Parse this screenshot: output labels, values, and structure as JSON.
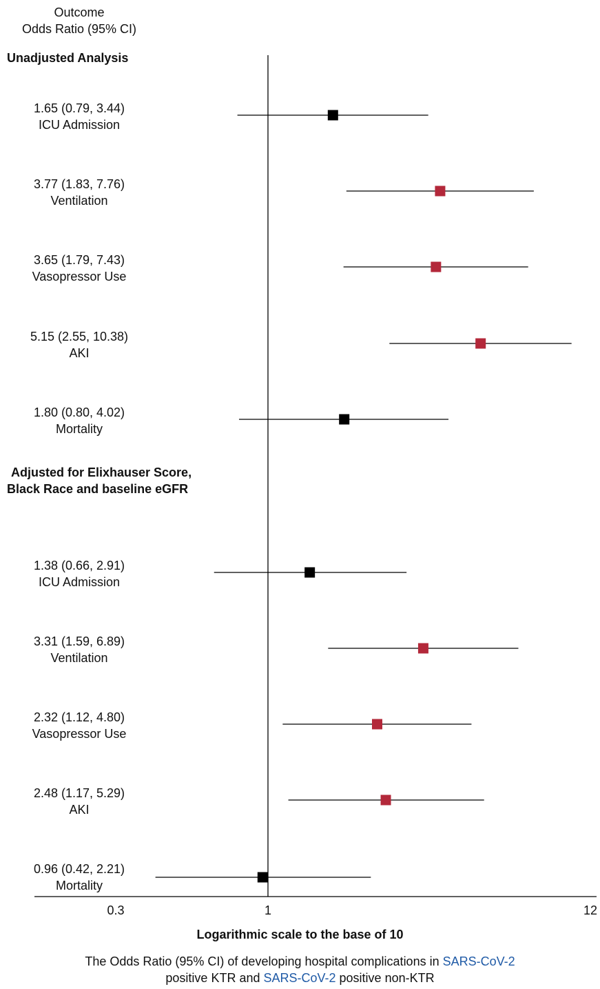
{
  "header": {
    "line1": "Outcome",
    "line2": "Odds Ratio (95% CI)"
  },
  "chart_data": {
    "type": "forest",
    "xscale": "log10",
    "xlim": [
      0.3,
      12
    ],
    "xticks": [
      {
        "value": 0.3,
        "label": "0.3"
      },
      {
        "value": 1,
        "label": "1"
      },
      {
        "value": 12,
        "label": "12"
      }
    ],
    "xlabel": "Logarithmic scale to the base of 10",
    "reference_line": 1,
    "colors": {
      "significant": "#b3283a",
      "nonsignificant": "#000000"
    },
    "sections": [
      {
        "title": "Unadjusted Analysis",
        "rows": [
          {
            "outcome": "ICU Admission",
            "label": "1.65 (0.79, 3.44)",
            "or": 1.65,
            "lo": 0.79,
            "hi": 3.44,
            "significant": false
          },
          {
            "outcome": "Ventilation",
            "label": "3.77 (1.83, 7.76)",
            "or": 3.77,
            "lo": 1.83,
            "hi": 7.76,
            "significant": true
          },
          {
            "outcome": "Vasopressor Use",
            "label": "3.65 (1.79, 7.43)",
            "or": 3.65,
            "lo": 1.79,
            "hi": 7.43,
            "significant": true
          },
          {
            "outcome": "AKI",
            "label": "5.15 (2.55, 10.38)",
            "or": 5.15,
            "lo": 2.55,
            "hi": 10.38,
            "significant": true
          },
          {
            "outcome": "Mortality",
            "label": "1.80 (0.80, 4.02)",
            "or": 1.8,
            "lo": 0.8,
            "hi": 4.02,
            "significant": false
          }
        ]
      },
      {
        "title_line1": "Adjusted for Elixhauser Score,",
        "title_line2": "Black Race and baseline eGFR",
        "rows": [
          {
            "outcome": "ICU Admission",
            "label": "1.38 (0.66, 2.91)",
            "or": 1.38,
            "lo": 0.66,
            "hi": 2.91,
            "significant": false
          },
          {
            "outcome": "Ventilation",
            "label": "3.31 (1.59, 6.89)",
            "or": 3.31,
            "lo": 1.59,
            "hi": 6.89,
            "significant": true
          },
          {
            "outcome": "Vasopressor Use",
            "label": "2.32 (1.12, 4.80)",
            "or": 2.32,
            "lo": 1.12,
            "hi": 4.8,
            "significant": true
          },
          {
            "outcome": "AKI",
            "label": "2.48 (1.17, 5.29)",
            "or": 2.48,
            "lo": 1.17,
            "hi": 5.29,
            "significant": true
          },
          {
            "outcome": "Mortality",
            "label": "0.96 (0.42, 2.21)",
            "or": 0.96,
            "lo": 0.42,
            "hi": 2.21,
            "significant": false
          }
        ]
      }
    ]
  },
  "caption": {
    "part1": "The Odds Ratio (95% CI) of developing hospital complications in ",
    "link1": "SARS-CoV-2",
    "part2": "positive KTR and ",
    "link2": "SARS-CoV-2",
    "part3": " positive non-KTR"
  }
}
